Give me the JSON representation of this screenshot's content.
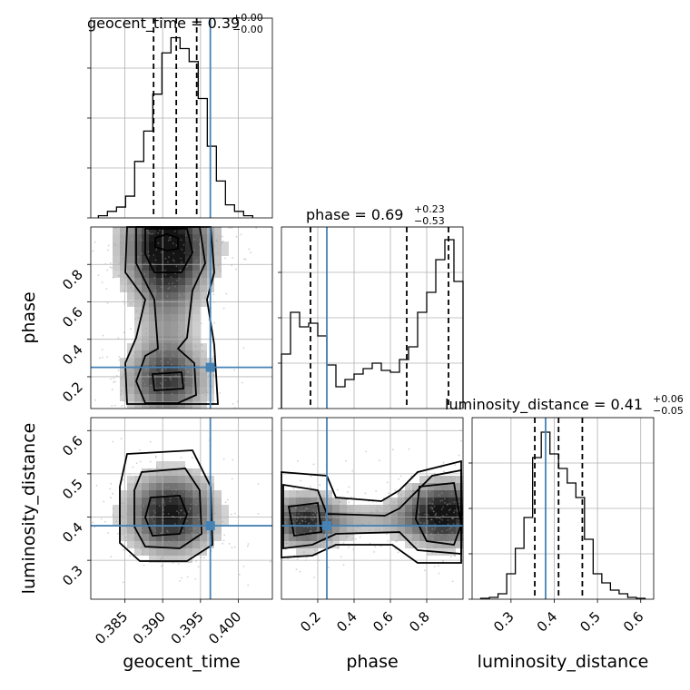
{
  "chart_data": {
    "type": "corner",
    "parameters": [
      "geocent_time",
      "phase",
      "luminosity_distance"
    ],
    "truths": {
      "geocent_time": 0.3963,
      "phase": 0.25,
      "luminosity_distance": 0.38
    },
    "panels": [
      {
        "id": "diag-geocent_time",
        "param": "geocent_time",
        "type": "histogram",
        "title": {
          "prefix": "geocent_time = 0.39",
          "plus": "+0.00",
          "minus": "−0.00"
        },
        "xlim": [
          0.3805,
          0.4045
        ],
        "quantiles": [
          0.3888,
          0.3918,
          0.3945
        ],
        "bin_edges": [
          0.3815,
          0.3827,
          0.3839,
          0.3851,
          0.3863,
          0.3875,
          0.3887,
          0.3899,
          0.3911,
          0.3923,
          0.3935,
          0.3947,
          0.3959,
          0.3971,
          0.3983,
          0.3995,
          0.4007,
          0.4019
        ],
        "counts": [
          0.01,
          0.03,
          0.05,
          0.1,
          0.26,
          0.4,
          0.57,
          0.76,
          0.83,
          0.78,
          0.72,
          0.55,
          0.33,
          0.17,
          0.06,
          0.03,
          0.01
        ],
        "ylim": [
          0,
          0.92
        ]
      },
      {
        "id": "diag-phase",
        "param": "phase",
        "type": "histogram",
        "title": {
          "prefix": "phase = 0.69",
          "plus": "+0.23",
          "minus": "−0.53"
        },
        "xlim": [
          0.0,
          1.0
        ],
        "quantiles": [
          0.16,
          0.69,
          0.92
        ],
        "bin_edges": [
          0.0,
          0.05,
          0.1,
          0.15,
          0.2,
          0.25,
          0.3,
          0.35,
          0.4,
          0.45,
          0.5,
          0.55,
          0.6,
          0.65,
          0.7,
          0.75,
          0.8,
          0.85,
          0.9,
          0.95,
          1.0
        ],
        "counts": [
          0.3,
          0.53,
          0.45,
          0.47,
          0.4,
          0.24,
          0.12,
          0.16,
          0.19,
          0.22,
          0.25,
          0.21,
          0.2,
          0.27,
          0.34,
          0.53,
          0.64,
          0.82,
          0.93,
          0.7
        ],
        "ylim": [
          0,
          1.0
        ]
      },
      {
        "id": "diag-luminosity_distance",
        "param": "luminosity_distance",
        "type": "histogram",
        "title": {
          "prefix": "luminosity_distance = 0.41",
          "plus": "+0.06",
          "minus": "−0.05"
        },
        "xlim": [
          0.21,
          0.63
        ],
        "quantiles": [
          0.355,
          0.41,
          0.465
        ],
        "bin_edges": [
          0.23,
          0.25,
          0.27,
          0.29,
          0.31,
          0.33,
          0.35,
          0.37,
          0.39,
          0.41,
          0.43,
          0.45,
          0.47,
          0.49,
          0.51,
          0.53,
          0.55,
          0.57,
          0.59,
          0.61
        ],
        "counts": [
          0.005,
          0.01,
          0.03,
          0.14,
          0.28,
          0.45,
          0.78,
          0.92,
          0.8,
          0.72,
          0.64,
          0.56,
          0.33,
          0.14,
          0.09,
          0.05,
          0.03,
          0.01,
          0.005
        ],
        "ylim": [
          0,
          1.0
        ]
      },
      {
        "id": "scatter-phase-vs-geocent_time",
        "type": "density-contour",
        "x": "geocent_time",
        "y": "phase",
        "xlim": [
          0.3805,
          0.4045
        ],
        "ylim": [
          0.03,
          1.0
        ],
        "density_peak": [
          0.3915,
          0.92
        ]
      },
      {
        "id": "scatter-luminosity_distance-vs-geocent_time",
        "type": "density-contour",
        "x": "geocent_time",
        "y": "luminosity_distance",
        "xlim": [
          0.3805,
          0.4045
        ],
        "ylim": [
          0.21,
          0.63
        ],
        "density_peak": [
          0.3912,
          0.395
        ]
      },
      {
        "id": "scatter-luminosity_distance-vs-phase",
        "type": "density-contour",
        "x": "phase",
        "y": "luminosity_distance",
        "xlim": [
          0.0,
          1.0
        ],
        "ylim": [
          0.21,
          0.63
        ],
        "density_peak": [
          0.9,
          0.4
        ]
      }
    ],
    "xticks": {
      "geocent_time": [
        "0.385",
        "0.390",
        "0.395",
        "0.400"
      ],
      "phase": [
        "0.2",
        "0.4",
        "0.6",
        "0.8"
      ],
      "luminosity_distance": [
        "0.3",
        "0.4",
        "0.5",
        "0.6"
      ]
    },
    "yticks": {
      "phase": [
        "0.2",
        "0.4",
        "0.6",
        "0.8"
      ],
      "luminosity_distance": [
        "0.3",
        "0.4",
        "0.5",
        "0.6"
      ]
    },
    "xlabels": [
      "geocent_time",
      "phase",
      "luminosity_distance"
    ],
    "ylabels": [
      "phase",
      "luminosity_distance"
    ],
    "grid": true,
    "colors": {
      "truth": "#4682b4",
      "lines": "#000000",
      "grid": "#b0b0b0"
    }
  }
}
